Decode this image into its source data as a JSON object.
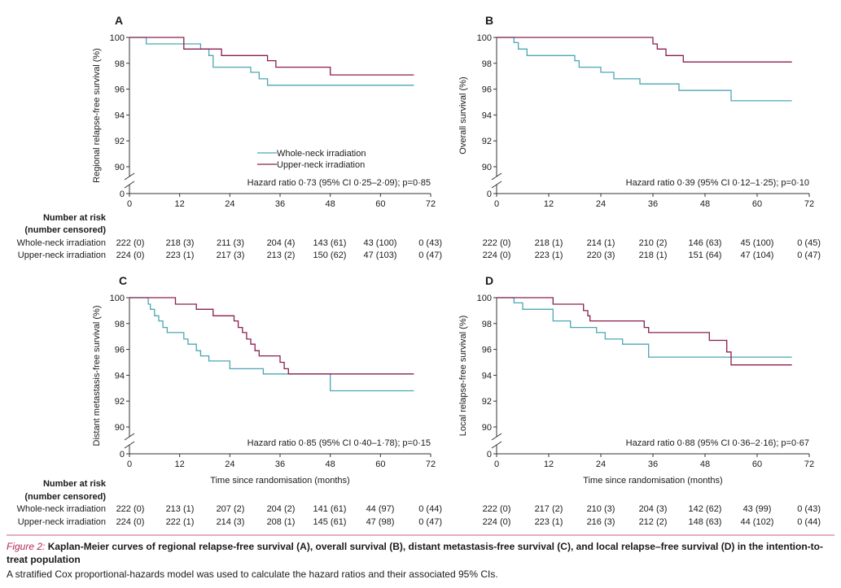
{
  "chart_data": [
    {
      "type": "line",
      "panel": "A",
      "ylabel": "Regional relapse-free survival (%)",
      "xlabel": "",
      "xlim": [
        0,
        72
      ],
      "ylim": [
        90,
        100
      ],
      "y_axis_break": true,
      "xticks": [
        "0",
        "12",
        "24",
        "36",
        "48",
        "60",
        "72"
      ],
      "yticks": [
        "0",
        "90",
        "92",
        "94",
        "96",
        "98",
        "100"
      ],
      "legend": {
        "placement": "center-right",
        "entries": [
          "Whole-neck irradiation",
          "Upper-neck irradiation"
        ]
      },
      "annotation": "Hazard ratio 0·73 (95% CI 0·25–2·09); p=0·85",
      "series": [
        {
          "name": "Whole-neck irradiation",
          "color": "#4ba6b6",
          "points": [
            [
              0,
              100
            ],
            [
              4,
              99.5
            ],
            [
              13,
              99.5
            ],
            [
              17,
              99.1
            ],
            [
              19,
              98.6
            ],
            [
              20,
              97.7
            ],
            [
              27,
              97.7
            ],
            [
              29,
              97.3
            ],
            [
              31,
              96.8
            ],
            [
              33,
              96.3
            ],
            [
              68,
              96.3
            ]
          ]
        },
        {
          "name": "Upper-neck irradiation",
          "color": "#8b1e4f",
          "points": [
            [
              0,
              100
            ],
            [
              12,
              100
            ],
            [
              13,
              99.1
            ],
            [
              20,
              99.1
            ],
            [
              22,
              98.6
            ],
            [
              31,
              98.6
            ],
            [
              33,
              98.2
            ],
            [
              35,
              97.7
            ],
            [
              47,
              97.7
            ],
            [
              48,
              97.1
            ],
            [
              68,
              97.1
            ]
          ]
        }
      ],
      "risk_table": {
        "title": [
          "Number at risk",
          "(number censored)"
        ],
        "rows": [
          {
            "label": "Whole-neck irradiation",
            "values": [
              "222 (0)",
              "218 (3)",
              "211 (3)",
              "204 (4)",
              "143 (61)",
              "43 (100)",
              "0 (43)"
            ]
          },
          {
            "label": "Upper-neck irradiation",
            "values": [
              "224 (0)",
              "223 (1)",
              "217 (3)",
              "213 (2)",
              "150 (62)",
              "47 (103)",
              "0 (47)"
            ]
          }
        ]
      }
    },
    {
      "type": "line",
      "panel": "B",
      "ylabel": "Overall survival (%)",
      "xlabel": "",
      "xlim": [
        0,
        72
      ],
      "ylim": [
        90,
        100
      ],
      "y_axis_break": true,
      "xticks": [
        "0",
        "12",
        "24",
        "36",
        "48",
        "60",
        "72"
      ],
      "yticks": [
        "0",
        "90",
        "92",
        "94",
        "96",
        "98",
        "100"
      ],
      "annotation": "Hazard ratio 0·39 (95% CI 0·12–1·25); p=0·10",
      "series": [
        {
          "name": "Whole-neck irradiation",
          "color": "#4ba6b6",
          "points": [
            [
              0,
              100
            ],
            [
              4,
              99.6
            ],
            [
              5,
              99.1
            ],
            [
              7,
              98.6
            ],
            [
              17,
              98.6
            ],
            [
              18,
              98.2
            ],
            [
              19,
              97.7
            ],
            [
              23,
              97.7
            ],
            [
              24,
              97.3
            ],
            [
              27,
              96.8
            ],
            [
              31,
              96.8
            ],
            [
              33,
              96.4
            ],
            [
              41,
              96.4
            ],
            [
              42,
              95.9
            ],
            [
              53,
              95.9
            ],
            [
              54,
              95.1
            ],
            [
              68,
              95.1
            ]
          ]
        },
        {
          "name": "Upper-neck irradiation",
          "color": "#8b1e4f",
          "points": [
            [
              0,
              100
            ],
            [
              35,
              100
            ],
            [
              36,
              99.5
            ],
            [
              37,
              99.1
            ],
            [
              39,
              98.6
            ],
            [
              42,
              98.6
            ],
            [
              43,
              98.1
            ],
            [
              68,
              98.1
            ]
          ]
        }
      ],
      "risk_table": {
        "title": [],
        "rows": [
          {
            "label": "",
            "values": [
              "222 (0)",
              "218 (1)",
              "214 (1)",
              "210 (2)",
              "146 (63)",
              "45 (100)",
              "0 (45)"
            ]
          },
          {
            "label": "",
            "values": [
              "224 (0)",
              "223 (1)",
              "220 (3)",
              "218 (1)",
              "151 (64)",
              "47 (104)",
              "0 (47)"
            ]
          }
        ]
      }
    },
    {
      "type": "line",
      "panel": "C",
      "ylabel": "Distant metastasis-free survival (%)",
      "xlabel": "Time since randomisation (months)",
      "xlim": [
        0,
        72
      ],
      "ylim": [
        90,
        100
      ],
      "y_axis_break": true,
      "xticks": [
        "0",
        "12",
        "24",
        "36",
        "48",
        "60",
        "72"
      ],
      "yticks": [
        "0",
        "90",
        "92",
        "94",
        "96",
        "98",
        "100"
      ],
      "annotation": "Hazard ratio 0·85 (95% CI 0·40–1·78); p=0·15",
      "series": [
        {
          "name": "Whole-neck irradiation",
          "color": "#4ba6b6",
          "points": [
            [
              0,
              100
            ],
            [
              4,
              100
            ],
            [
              4.5,
              99.5
            ],
            [
              5,
              99.1
            ],
            [
              6,
              98.6
            ],
            [
              7,
              98.2
            ],
            [
              8,
              97.7
            ],
            [
              9,
              97.3
            ],
            [
              12,
              97.3
            ],
            [
              13,
              96.8
            ],
            [
              14,
              96.4
            ],
            [
              16,
              95.9
            ],
            [
              17,
              95.5
            ],
            [
              19,
              95.1
            ],
            [
              23,
              95.1
            ],
            [
              24,
              94.5
            ],
            [
              31,
              94.5
            ],
            [
              32,
              94.1
            ],
            [
              47,
              94.1
            ],
            [
              48,
              92.8
            ],
            [
              68,
              92.8
            ]
          ]
        },
        {
          "name": "Upper-neck irradiation",
          "color": "#8b1e4f",
          "points": [
            [
              0,
              100
            ],
            [
              10,
              100
            ],
            [
              11,
              99.5
            ],
            [
              15,
              99.5
            ],
            [
              16,
              99.1
            ],
            [
              19,
              99.1
            ],
            [
              20,
              98.6
            ],
            [
              24,
              98.6
            ],
            [
              25,
              98.2
            ],
            [
              26,
              97.7
            ],
            [
              27,
              97.3
            ],
            [
              28,
              96.8
            ],
            [
              29,
              96.4
            ],
            [
              30,
              95.9
            ],
            [
              31,
              95.5
            ],
            [
              35,
              95.5
            ],
            [
              36,
              95
            ],
            [
              37,
              94.5
            ],
            [
              38,
              94.1
            ],
            [
              68,
              94.1
            ]
          ]
        }
      ],
      "risk_table": {
        "title": [
          "Number at risk",
          "(number censored)"
        ],
        "rows": [
          {
            "label": "Whole-neck irradiation",
            "values": [
              "222 (0)",
              "213 (1)",
              "207 (2)",
              "204 (2)",
              "141 (61)",
              "44 (97)",
              "0 (44)"
            ]
          },
          {
            "label": "Upper-neck irradiation",
            "values": [
              "224 (0)",
              "222 (1)",
              "214 (3)",
              "208 (1)",
              "145 (61)",
              "47 (98)",
              "0 (47)"
            ]
          }
        ]
      }
    },
    {
      "type": "line",
      "panel": "D",
      "ylabel": "Local relapse-free survival (%)",
      "xlabel": "Time since randomisation (months)",
      "xlim": [
        0,
        72
      ],
      "ylim": [
        90,
        100
      ],
      "y_axis_break": true,
      "xticks": [
        "0",
        "12",
        "24",
        "36",
        "48",
        "60",
        "72"
      ],
      "yticks": [
        "0",
        "90",
        "92",
        "94",
        "96",
        "98",
        "100"
      ],
      "annotation": "Hazard ratio 0·88 (95% CI 0·36–2·16); p=0·67",
      "series": [
        {
          "name": "Whole-neck irradiation",
          "color": "#4ba6b6",
          "points": [
            [
              0,
              100
            ],
            [
              4,
              99.6
            ],
            [
              6,
              99.1
            ],
            [
              12,
              99.1
            ],
            [
              13,
              98.2
            ],
            [
              16,
              98.2
            ],
            [
              17,
              97.7
            ],
            [
              22,
              97.7
            ],
            [
              23,
              97.3
            ],
            [
              25,
              96.8
            ],
            [
              28,
              96.8
            ],
            [
              29,
              96.4
            ],
            [
              34,
              96.4
            ],
            [
              35,
              95.4
            ],
            [
              68,
              95.4
            ]
          ]
        },
        {
          "name": "Upper-neck irradiation",
          "color": "#8b1e4f",
          "points": [
            [
              0,
              100
            ],
            [
              12,
              100
            ],
            [
              13,
              99.5
            ],
            [
              19,
              99.5
            ],
            [
              20,
              99
            ],
            [
              21,
              98.6
            ],
            [
              21.5,
              98.2
            ],
            [
              33,
              98.2
            ],
            [
              34,
              97.7
            ],
            [
              35,
              97.3
            ],
            [
              48,
              97.3
            ],
            [
              49,
              96.7
            ],
            [
              52,
              96.7
            ],
            [
              53,
              95.8
            ],
            [
              54,
              94.8
            ],
            [
              68,
              94.8
            ]
          ]
        }
      ],
      "risk_table": {
        "title": [],
        "rows": [
          {
            "label": "",
            "values": [
              "222 (0)",
              "217 (2)",
              "210 (3)",
              "204 (3)",
              "142 (62)",
              "43 (99)",
              "0 (43)"
            ]
          },
          {
            "label": "",
            "values": [
              "224 (0)",
              "223 (1)",
              "216 (3)",
              "212 (2)",
              "148 (63)",
              "44 (102)",
              "0 (44)"
            ]
          }
        ]
      }
    }
  ],
  "caption": {
    "label": "Figure 2:",
    "title": "Kaplan-Meier curves of regional relapse-free survival (A), overall survival (B), distant metastasis-free survival (C), and local relapse–free survival (D) in the intention-to-treat population",
    "note": "A stratified Cox proportional-hazards model was used to calculate the hazard ratios and their associated 95% CIs."
  }
}
